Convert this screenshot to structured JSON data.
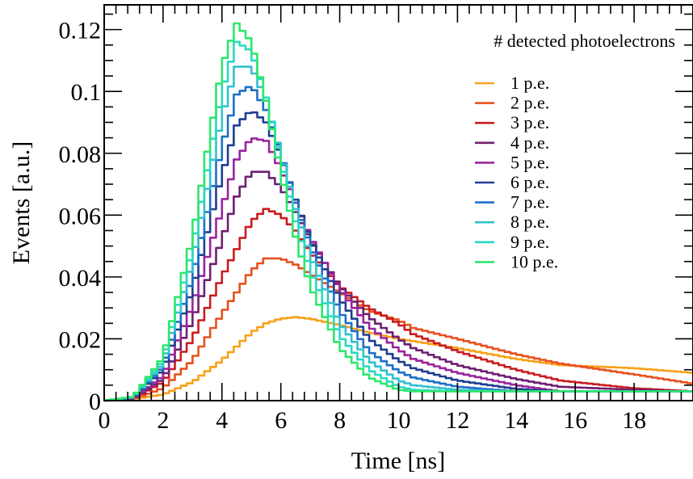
{
  "chart_data": {
    "type": "line",
    "xlabel": "Time [ns]",
    "ylabel": "Events [a.u.]",
    "xlim": [
      0,
      20
    ],
    "ylim": [
      0,
      0.128
    ],
    "x_ticks": [
      0,
      2,
      4,
      6,
      8,
      10,
      12,
      14,
      16,
      18
    ],
    "x_tick_labels": [
      "0",
      "2",
      "4",
      "6",
      "8",
      "10",
      "12",
      "14",
      "16",
      "18"
    ],
    "y_ticks": [
      0,
      0.02,
      0.04,
      0.06,
      0.08,
      0.1,
      0.12
    ],
    "y_tick_labels": [
      "0",
      "0.02",
      "0.04",
      "0.06",
      "0.08",
      "0.1",
      "0.12"
    ],
    "grid": false,
    "legend_title": "# detected photoelectrons",
    "legend_position": "top-right",
    "series": [
      {
        "name": "1 p.e.",
        "color": "#f7a11a",
        "x": [
          0,
          1,
          2,
          3,
          4,
          5,
          5.5,
          6,
          6.5,
          7,
          8,
          9,
          10,
          12,
          14,
          15.5,
          18,
          20
        ],
        "y": [
          0,
          0.0005,
          0.002,
          0.006,
          0.013,
          0.022,
          0.025,
          0.0265,
          0.027,
          0.0265,
          0.0245,
          0.022,
          0.02,
          0.017,
          0.0135,
          0.0115,
          0.0105,
          0.009
        ]
      },
      {
        "name": "2 p.e.",
        "color": "#e8501e",
        "x": [
          0,
          1,
          2,
          3,
          4,
          5,
          5.5,
          6,
          6.5,
          7,
          8,
          9,
          10,
          10.5,
          12,
          14,
          15.5,
          18,
          20
        ],
        "y": [
          0,
          0.0005,
          0.004,
          0.013,
          0.028,
          0.042,
          0.046,
          0.046,
          0.044,
          0.041,
          0.035,
          0.029,
          0.026,
          0.0235,
          0.02,
          0.015,
          0.012,
          0.0085,
          0.0055
        ]
      },
      {
        "name": "3 p.e.",
        "color": "#c91d20",
        "x": [
          0,
          1,
          2,
          3,
          4,
          5,
          5.5,
          6,
          6.5,
          7,
          8,
          9,
          10,
          10.5,
          12,
          14,
          15.5,
          18,
          20
        ],
        "y": [
          0,
          0.0006,
          0.006,
          0.02,
          0.04,
          0.058,
          0.062,
          0.06,
          0.055,
          0.048,
          0.037,
          0.03,
          0.025,
          0.0215,
          0.016,
          0.01,
          0.0065,
          0.004,
          0.003
        ]
      },
      {
        "name": "4 p.e.",
        "color": "#6e1f70",
        "x": [
          0,
          1,
          2,
          3,
          4,
          4.5,
          5,
          5.5,
          6,
          6.5,
          7,
          8,
          9,
          10,
          10.5,
          12,
          14,
          15.5,
          18,
          20
        ],
        "y": [
          0,
          0.0007,
          0.007,
          0.026,
          0.052,
          0.066,
          0.074,
          0.074,
          0.069,
          0.061,
          0.052,
          0.037,
          0.027,
          0.02,
          0.017,
          0.0115,
          0.007,
          0.0045,
          0.0035,
          0.003
        ]
      },
      {
        "name": "5 p.e.",
        "color": "#9a249b",
        "x": [
          0,
          1,
          2,
          3,
          4,
          4.5,
          5,
          5.5,
          6,
          6.5,
          7,
          8,
          9,
          10,
          10.5,
          12,
          14,
          15.5,
          18,
          20
        ],
        "y": [
          0,
          0.0008,
          0.008,
          0.031,
          0.062,
          0.078,
          0.085,
          0.084,
          0.075,
          0.064,
          0.053,
          0.036,
          0.024,
          0.0165,
          0.0135,
          0.009,
          0.005,
          0.003,
          0.003,
          0.003
        ]
      },
      {
        "name": "6 p.e.",
        "color": "#1f3f8f",
        "x": [
          0,
          1,
          2,
          3,
          4,
          4.5,
          5,
          5.5,
          6,
          6.5,
          7,
          8,
          9,
          10,
          10.5,
          12,
          14,
          15.5,
          18,
          20
        ],
        "y": [
          0,
          0.0009,
          0.01,
          0.036,
          0.073,
          0.089,
          0.094,
          0.09,
          0.079,
          0.065,
          0.052,
          0.033,
          0.02,
          0.013,
          0.0105,
          0.0065,
          0.0038,
          0.003,
          0.003,
          0.003
        ]
      },
      {
        "name": "7 p.e.",
        "color": "#1f6fc8",
        "x": [
          0,
          1,
          2,
          3,
          4,
          4.5,
          5,
          5.5,
          6,
          6.5,
          7,
          8,
          9,
          10,
          10.5,
          12,
          14,
          15.5,
          18,
          20
        ],
        "y": [
          0,
          0.001,
          0.011,
          0.04,
          0.082,
          0.099,
          0.102,
          0.094,
          0.08,
          0.064,
          0.05,
          0.029,
          0.016,
          0.0095,
          0.0075,
          0.0045,
          0.003,
          0.003,
          0.003,
          0.003
        ]
      },
      {
        "name": "8 p.e.",
        "color": "#33c0cf",
        "x": [
          0,
          1,
          2,
          3,
          4,
          4.5,
          5,
          5.5,
          6,
          6.5,
          7,
          8,
          9,
          10,
          10.5,
          12,
          14,
          15.5,
          18,
          20
        ],
        "y": [
          0,
          0.0011,
          0.012,
          0.045,
          0.092,
          0.108,
          0.108,
          0.097,
          0.08,
          0.062,
          0.047,
          0.025,
          0.013,
          0.0065,
          0.005,
          0.0035,
          0.003,
          0.003,
          0.003,
          0.003
        ]
      },
      {
        "name": "9 p.e.",
        "color": "#2ad9c2",
        "x": [
          0,
          1,
          2,
          3,
          4,
          4.5,
          5,
          5.5,
          6,
          6.5,
          7,
          8,
          9,
          10,
          10.5,
          12,
          14,
          15.5,
          18,
          20
        ],
        "y": [
          0,
          0.0012,
          0.013,
          0.049,
          0.1,
          0.116,
          0.113,
          0.098,
          0.078,
          0.058,
          0.042,
          0.021,
          0.01,
          0.0045,
          0.0035,
          0.003,
          0.003,
          0.003,
          0.003,
          0.003
        ]
      },
      {
        "name": "10 p.e.",
        "color": "#2de86c",
        "x": [
          0,
          1,
          2,
          3,
          4,
          4.5,
          5,
          5.5,
          6,
          6.5,
          7,
          8,
          9,
          10,
          10.5,
          12,
          14,
          15.5,
          18,
          20
        ],
        "y": [
          0,
          0.0013,
          0.014,
          0.053,
          0.108,
          0.122,
          0.116,
          0.097,
          0.074,
          0.053,
          0.037,
          0.017,
          0.0075,
          0.0035,
          0.003,
          0.003,
          0.003,
          0.003,
          0.003,
          0.003
        ]
      }
    ]
  }
}
